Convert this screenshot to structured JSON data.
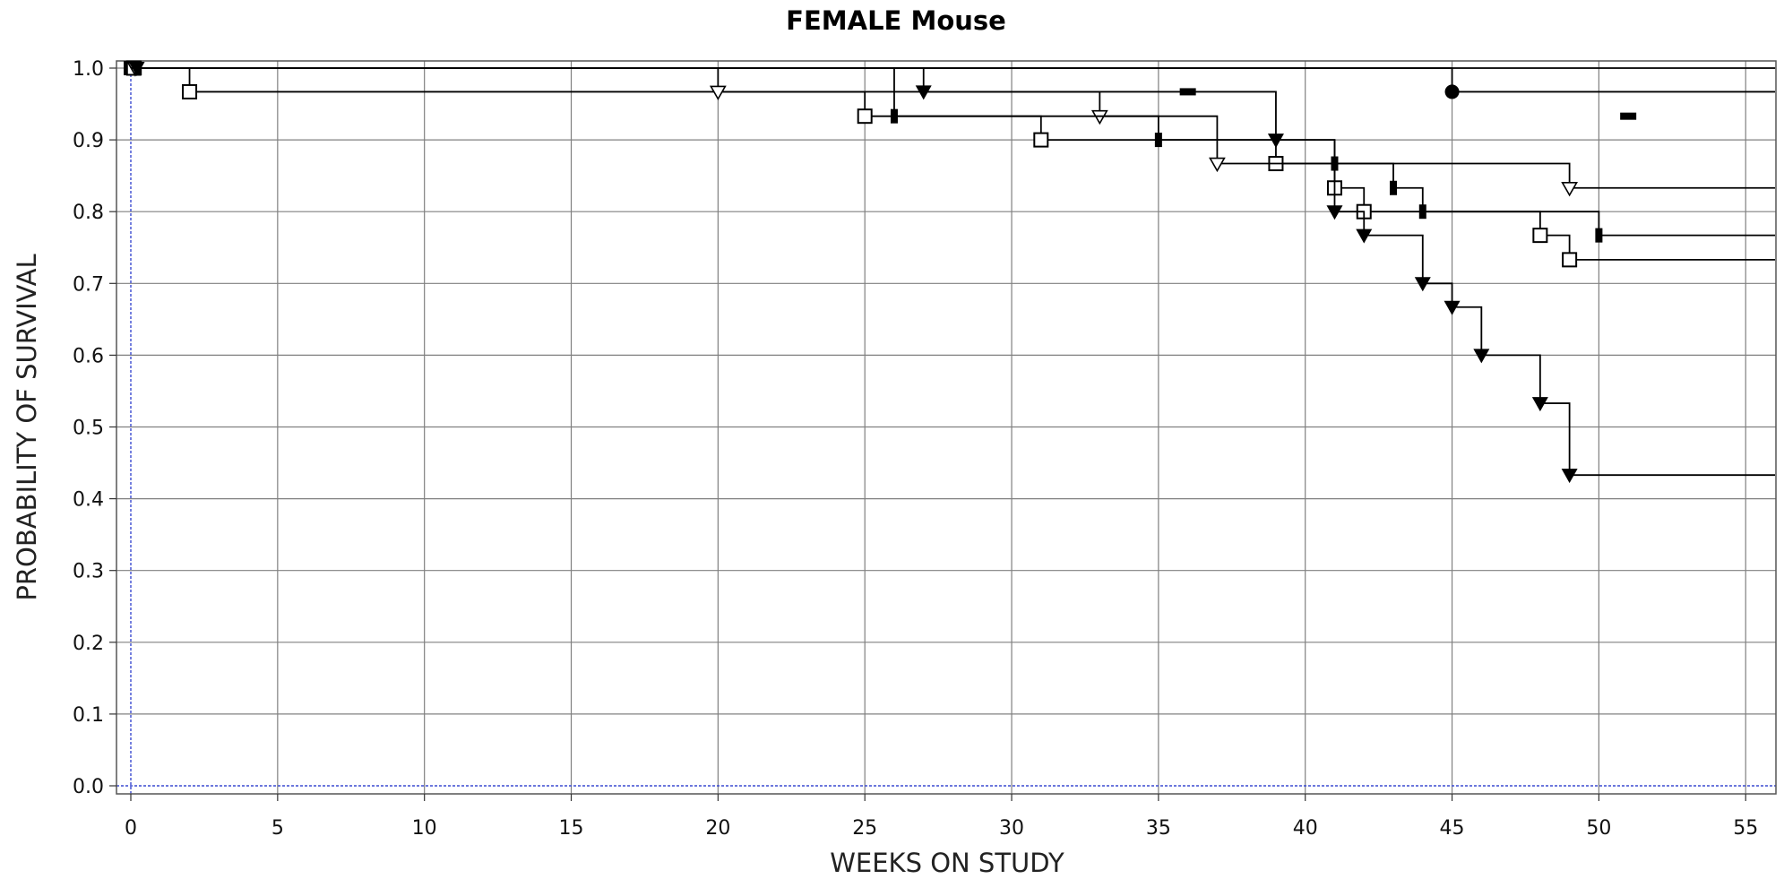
{
  "chart_data": {
    "type": "line",
    "title": "FEMALE Mouse",
    "xlabel": "WEEKS ON STUDY",
    "ylabel": "PROBABILITY OF SURVIVAL",
    "xlim": [
      0,
      56
    ],
    "ylim": [
      0,
      1.0
    ],
    "x_ticks": [
      0,
      5,
      10,
      15,
      20,
      25,
      30,
      35,
      40,
      45,
      50,
      55
    ],
    "x_tick_labels": [
      "0",
      "5",
      "10",
      "15",
      "20",
      "25",
      "30",
      "35",
      "40",
      "45",
      "50",
      "55"
    ],
    "y_ticks": [
      0,
      0.1,
      0.2,
      0.3,
      0.4,
      0.5,
      0.6,
      0.7,
      0.8,
      0.9,
      1.0
    ],
    "y_tick_labels": [
      "0.0",
      "0.1",
      "0.2",
      "0.3",
      "0.4",
      "0.5",
      "0.6",
      "0.7",
      "0.8",
      "0.9",
      "1.0"
    ],
    "grid": true,
    "line_color": "#000000",
    "grid_color": "#808080",
    "reference_color": "#3b4bd1",
    "series": [
      {
        "marker": "square-filled",
        "start": 1.0,
        "events": [],
        "censored": []
      },
      {
        "marker": "circle-filled",
        "start": 1.0,
        "events": [
          [
            45,
            0.967
          ]
        ],
        "censored": []
      },
      {
        "marker": "square-open",
        "start": 1.0,
        "events": [
          [
            2,
            0.967
          ],
          [
            25,
            0.933
          ],
          [
            31,
            0.9
          ],
          [
            39,
            0.867
          ],
          [
            41,
            0.833
          ],
          [
            42,
            0.8
          ],
          [
            48,
            0.767
          ],
          [
            49,
            0.733
          ]
        ],
        "censored": []
      },
      {
        "marker": "triangle-open",
        "start": 1.0,
        "events": [
          [
            20,
            0.967
          ],
          [
            33,
            0.933
          ],
          [
            37,
            0.867
          ],
          [
            49,
            0.833
          ]
        ],
        "censored": []
      },
      {
        "marker": "triangle-filled",
        "start": 1.0,
        "events": [
          [
            27,
            0.967
          ],
          [
            39,
            0.9
          ],
          [
            41,
            0.8
          ],
          [
            42,
            0.767
          ],
          [
            44,
            0.7
          ],
          [
            45,
            0.667
          ],
          [
            46,
            0.6
          ],
          [
            48,
            0.533
          ],
          [
            49,
            0.433
          ]
        ],
        "censored": []
      },
      {
        "marker": "bar-filled",
        "start": 1.0,
        "events": [
          [
            26,
            0.933
          ],
          [
            35,
            0.9
          ],
          [
            41,
            0.867
          ],
          [
            43,
            0.833
          ],
          [
            44,
            0.8
          ],
          [
            50,
            0.767
          ]
        ],
        "censored": [
          [
            36,
            0.967
          ],
          [
            51,
            0.933
          ]
        ]
      }
    ]
  }
}
